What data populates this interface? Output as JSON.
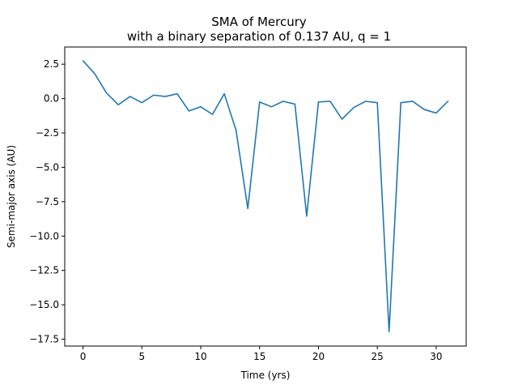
{
  "chart_data": {
    "type": "line",
    "title": "SMA of Mercury",
    "subtitle": "with a binary separation of 0.137 AU, q = 1",
    "xlabel": "Time (yrs)",
    "ylabel": "Semi-major axis (AU)",
    "xlim": [
      -1.55,
      32.55
    ],
    "ylim": [
      -18.0,
      3.75
    ],
    "xticks": [
      0,
      5,
      10,
      15,
      20,
      25,
      30
    ],
    "xtick_labels": [
      "0",
      "5",
      "10",
      "15",
      "20",
      "25",
      "30"
    ],
    "yticks": [
      2.5,
      0.0,
      -2.5,
      -5.0,
      -7.5,
      -10.0,
      -12.5,
      -15.0,
      -17.5
    ],
    "ytick_labels": [
      "2.5",
      "0.0",
      "−2.5",
      "−5.0",
      "−7.5",
      "−10.0",
      "−12.5",
      "−15.0",
      "−17.5"
    ],
    "grid": false,
    "legend": "none",
    "series": [
      {
        "color": "#1f77b4",
        "x": [
          0,
          1,
          2,
          3,
          4,
          5,
          6,
          7,
          8,
          9,
          10,
          11,
          12,
          13,
          14,
          15,
          16,
          17,
          18,
          19,
          20,
          21,
          22,
          23,
          24,
          25,
          26,
          27,
          28,
          29,
          30,
          31
        ],
        "values": [
          2.75,
          1.8,
          0.4,
          -0.45,
          0.15,
          -0.3,
          0.25,
          0.15,
          0.35,
          -0.9,
          -0.6,
          -1.15,
          0.35,
          -2.3,
          -8.0,
          -0.25,
          -0.6,
          -0.2,
          -0.4,
          -8.55,
          -0.25,
          -0.2,
          -1.5,
          -0.65,
          -0.2,
          -0.3,
          -16.95,
          -0.3,
          -0.2,
          -0.8,
          -1.05,
          -0.2
        ]
      }
    ]
  }
}
